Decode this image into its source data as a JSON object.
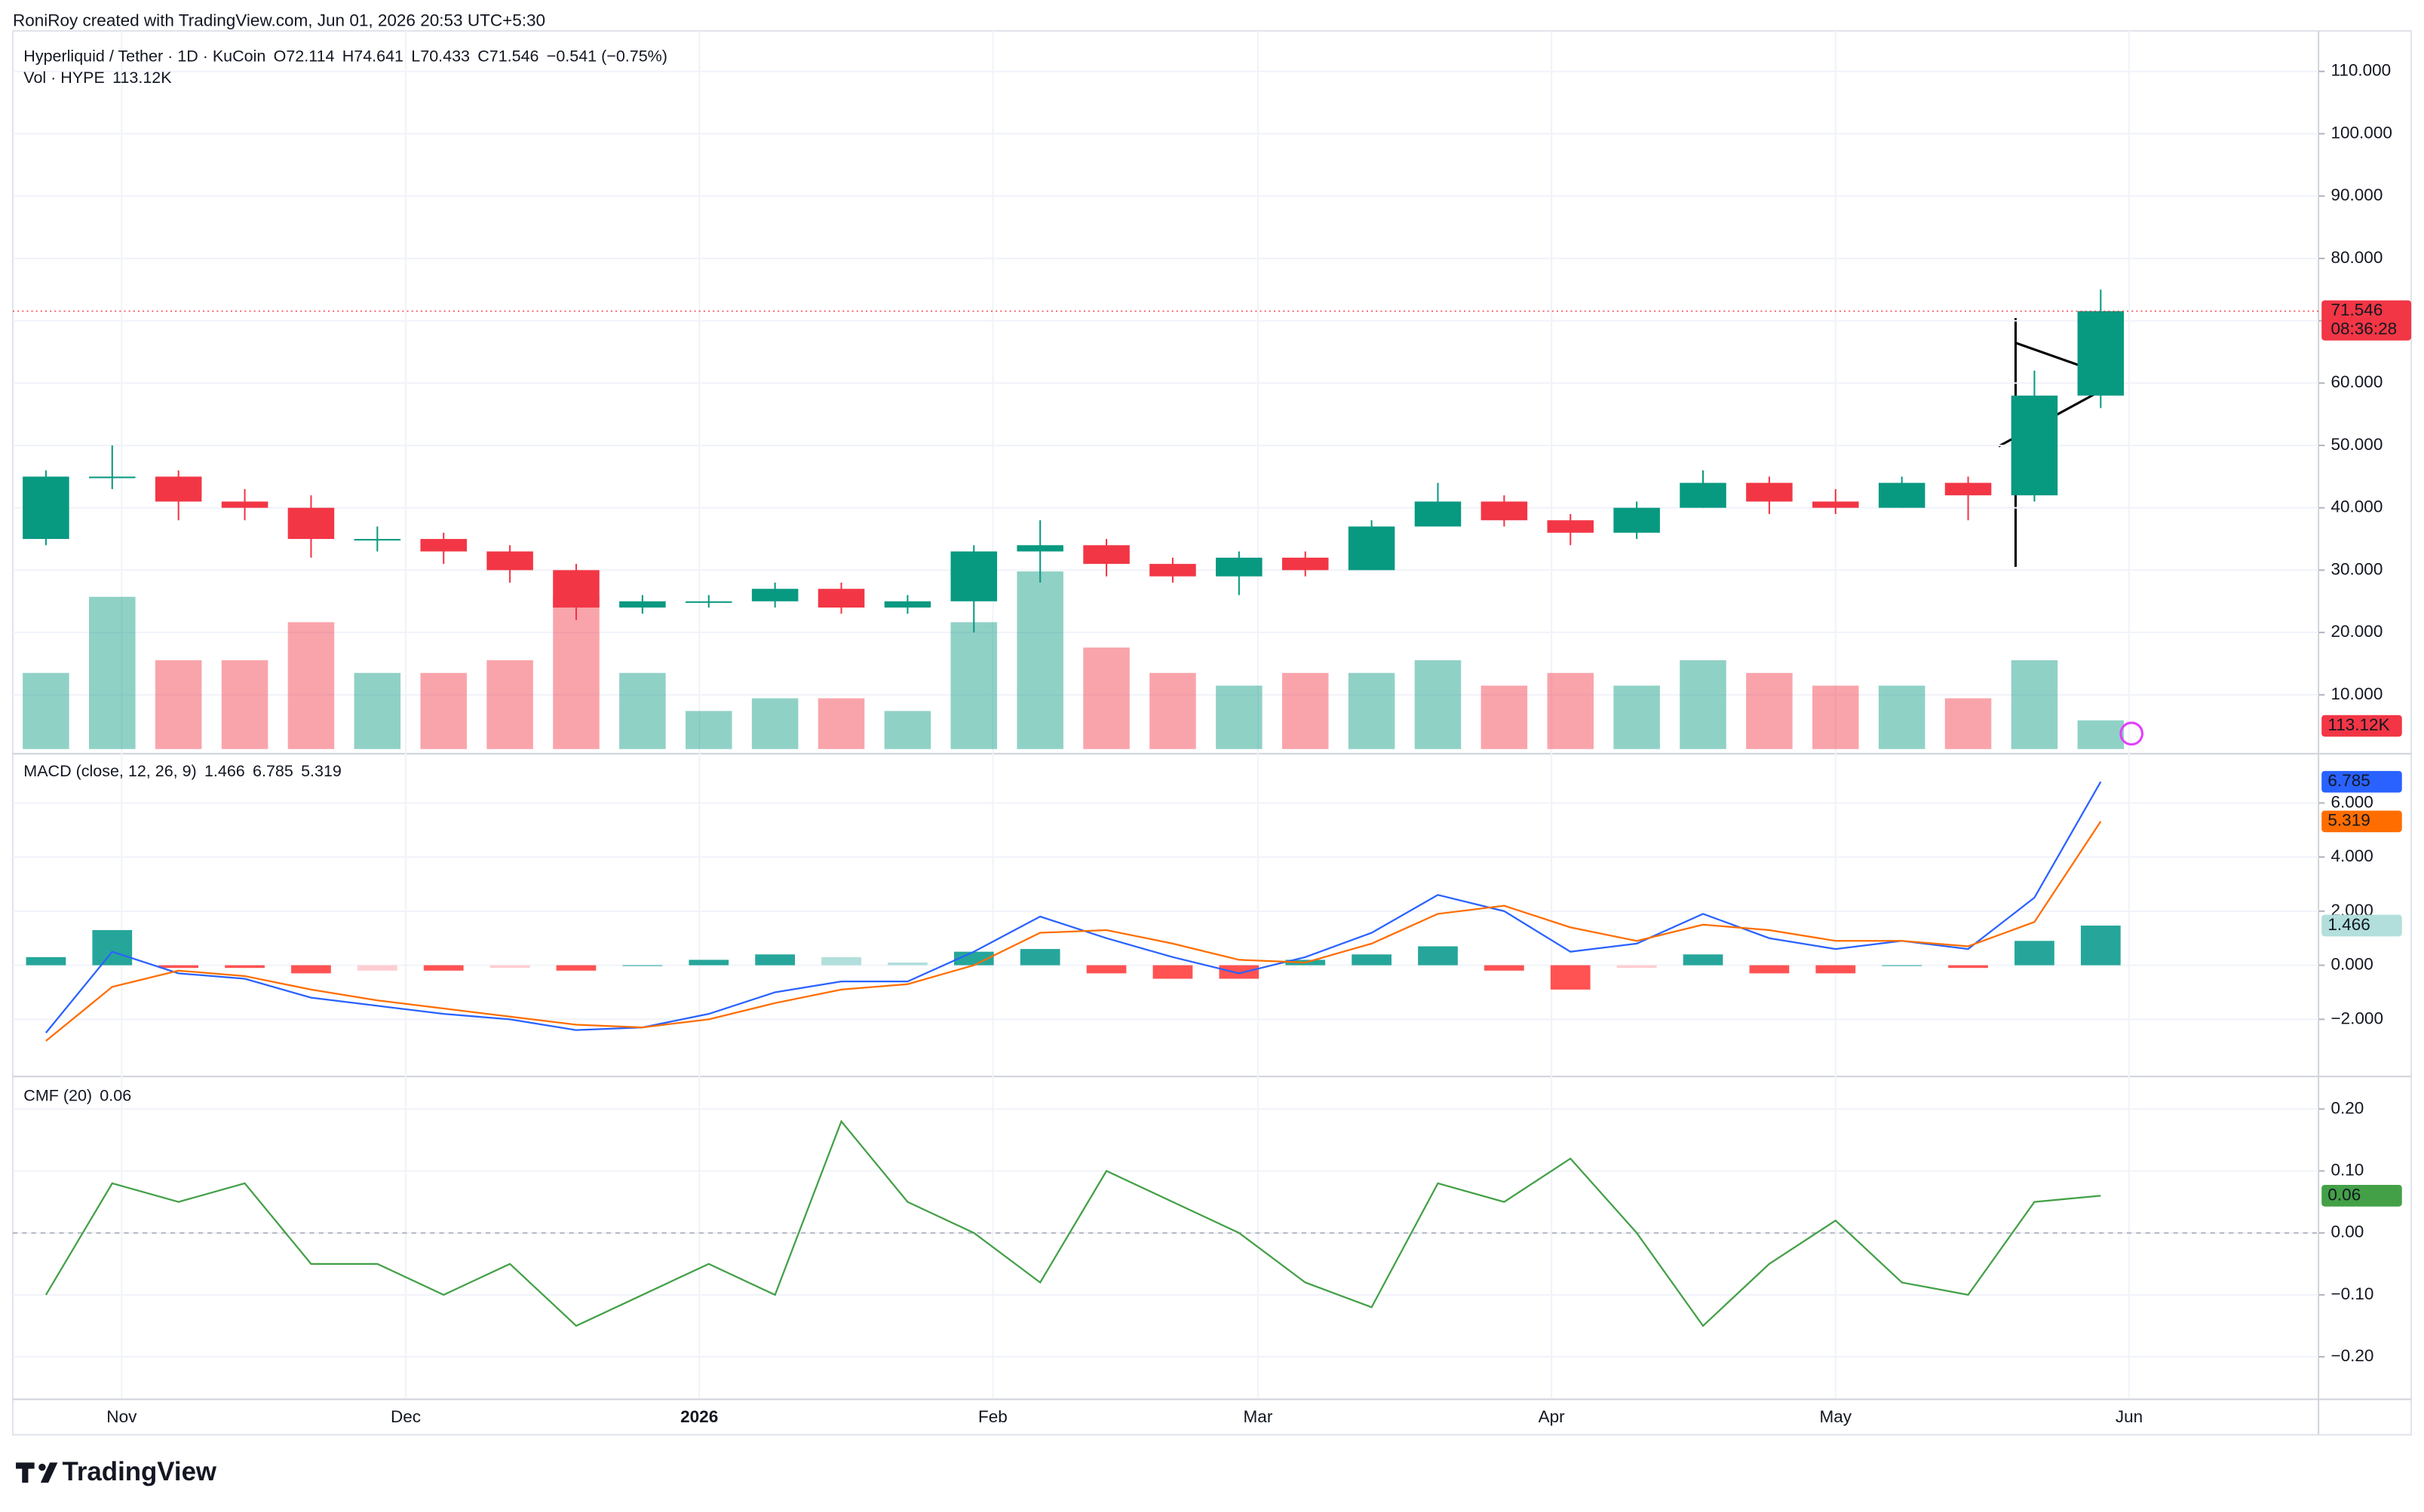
{
  "header": {
    "credit": "RoniRoy created with TradingView.com, Jun 01, 2026 20:53 UTC+5:30"
  },
  "footer": {
    "brand": "TradingView"
  },
  "chart_data": [
    {
      "type": "candlestick",
      "title": "Hyperliquid / Tether · 1D · KuCoin",
      "ohlc_legend": {
        "open": "O72.114",
        "high": "H74.641",
        "low": "L70.433",
        "close": "C71.546",
        "change": "−0.541 (−0.75%)"
      },
      "countdown": "08:36:28",
      "x": [
        3,
        10,
        17,
        24,
        31,
        38,
        45,
        52,
        59,
        66,
        73,
        80,
        87,
        94,
        101,
        108,
        115,
        122,
        129,
        136,
        143,
        150,
        157,
        164,
        171,
        178,
        185,
        192,
        199,
        206,
        213,
        220
      ],
      "open": [
        35,
        45,
        45,
        41,
        40,
        35,
        35,
        33,
        30,
        24,
        25,
        25,
        27,
        24,
        25,
        33,
        34,
        31,
        29,
        32,
        30,
        37,
        41,
        38,
        36,
        40,
        44,
        41,
        40,
        44,
        42,
        58
      ],
      "high": [
        46,
        50,
        46,
        43,
        42,
        37,
        36,
        34,
        31,
        26,
        26,
        28,
        28,
        26,
        34,
        38,
        35,
        32,
        33,
        33,
        38,
        44,
        42,
        39,
        41,
        46,
        45,
        43,
        45,
        45,
        62,
        75
      ],
      "low": [
        34,
        43,
        38,
        38,
        32,
        33,
        31,
        28,
        22,
        23,
        24,
        24,
        23,
        23,
        20,
        28,
        29,
        28,
        26,
        29,
        30,
        37,
        37,
        34,
        35,
        40,
        39,
        39,
        40,
        38,
        41,
        56
      ],
      "close": [
        45,
        45,
        41,
        40,
        35,
        35,
        33,
        30,
        24,
        25,
        25,
        27,
        24,
        25,
        33,
        34,
        31,
        29,
        32,
        30,
        37,
        41,
        38,
        36,
        40,
        44,
        41,
        40,
        44,
        42,
        58,
        71.546
      ],
      "up_color": "#089981",
      "down_color": "#f23645",
      "volume": {
        "name": "Vol · HYPE",
        "values": [
          300000,
          600000,
          350000,
          350000,
          500000,
          300000,
          300000,
          350000,
          600000,
          300000,
          150000,
          200000,
          200000,
          150000,
          500000,
          700000,
          400000,
          300000,
          250000,
          300000,
          300000,
          350000,
          250000,
          300000,
          250000,
          350000,
          300000,
          250000,
          250000,
          200000,
          350000,
          113120
        ],
        "value_labels": [
          null,
          null,
          null,
          null,
          null,
          null,
          null,
          null,
          null,
          null,
          null,
          null,
          null,
          null,
          null,
          null,
          null,
          null,
          null,
          null,
          null,
          null,
          null,
          null,
          null,
          null,
          null,
          null,
          null,
          null,
          null,
          "113.12K"
        ]
      },
      "xlim": [
        -0.5,
        243
      ],
      "xticks": [
        {
          "value": 11,
          "label": "Nov"
        },
        {
          "value": 41,
          "label": "Dec"
        },
        {
          "value": 72,
          "label": "2026"
        },
        {
          "value": 103,
          "label": "Feb"
        },
        {
          "value": 131,
          "label": "Mar"
        },
        {
          "value": 162,
          "label": "Apr"
        },
        {
          "value": 192,
          "label": "May"
        },
        {
          "value": 223,
          "label": "Jun"
        }
      ],
      "ylim": [
        1.3,
        116.5
      ],
      "yticks": [
        {
          "value": 10,
          "label": "10.000"
        },
        {
          "value": 20,
          "label": "20.000"
        },
        {
          "value": 30,
          "label": "30.000"
        },
        {
          "value": 40,
          "label": "40.000"
        },
        {
          "value": 50,
          "label": "50.000"
        },
        {
          "value": 60,
          "label": "60.000"
        },
        {
          "value": 70,
          "label": "70.000"
        },
        {
          "value": 80,
          "label": "80.000"
        },
        {
          "value": 90,
          "label": "90.000"
        },
        {
          "value": 100,
          "label": "100.000"
        },
        {
          "value": 110,
          "label": "110.000"
        }
      ],
      "grid": true
    },
    {
      "type": "macd",
      "title": "MACD (close, 12, 26, 9)",
      "series": [
        {
          "color": "#2962ff",
          "values": [
            -2.5,
            0.5,
            -0.3,
            -0.5,
            -1.2,
            -1.5,
            -1.8,
            -2.0,
            -2.4,
            -2.3,
            -1.8,
            -1.0,
            -0.6,
            -0.6,
            0.5,
            1.8,
            1.0,
            0.3,
            -0.3,
            0.3,
            1.2,
            2.6,
            2.0,
            0.5,
            0.8,
            1.9,
            1.0,
            0.6,
            0.9,
            0.6,
            2.5,
            6.785
          ]
        },
        {
          "color": "#ff6d00",
          "values": [
            -2.8,
            -0.8,
            -0.2,
            -0.4,
            -0.9,
            -1.3,
            -1.6,
            -1.9,
            -2.2,
            -2.3,
            -2.0,
            -1.4,
            -0.9,
            -0.7,
            0,
            1.2,
            1.3,
            0.8,
            0.2,
            0.1,
            0.8,
            1.9,
            2.2,
            1.4,
            0.9,
            1.5,
            1.3,
            0.9,
            0.9,
            0.7,
            1.6,
            5.319
          ]
        }
      ],
      "histogram": {
        "values": [
          0.3,
          1.3,
          -0.1,
          -0.1,
          -0.3,
          -0.2,
          -0.2,
          -0.1,
          -0.2,
          0,
          0.2,
          0.4,
          0.3,
          0.1,
          0.5,
          0.6,
          -0.3,
          -0.5,
          -0.5,
          0.2,
          0.4,
          0.7,
          -0.2,
          -0.9,
          -0.1,
          0.4,
          -0.3,
          -0.3,
          0,
          -0.1,
          0.9,
          1.466
        ],
        "colors": [
          "#26a69a",
          "#b2dfdb",
          "#ff5252",
          "#ffcdd2"
        ]
      },
      "ylim": [
        -4,
        7.71
      ],
      "yticks": [
        {
          "value": -2,
          "label": "−2.000"
        },
        {
          "value": 0,
          "label": "0.000"
        },
        {
          "value": 2,
          "label": "2.000"
        },
        {
          "value": 4,
          "label": "4.000"
        },
        {
          "value": 6,
          "label": "6.000"
        }
      ]
    },
    {
      "type": "line",
      "title": "CMF (20)",
      "series": [
        {
          "color": "#43a047",
          "values": [
            -0.1,
            0.08,
            0.05,
            0.08,
            -0.05,
            -0.05,
            -0.1,
            -0.05,
            -0.15,
            -0.1,
            -0.05,
            -0.1,
            0.18,
            0.05,
            0.0,
            -0.08,
            0.1,
            0.05,
            0.0,
            -0.08,
            -0.12,
            0.08,
            0.05,
            0.12,
            0.0,
            -0.15,
            -0.05,
            0.02,
            -0.08,
            -0.1,
            0.05,
            0.06
          ]
        }
      ],
      "ylim": [
        -0.266,
        0.245
      ],
      "yticks": [
        {
          "value": -0.2,
          "label": "−0.20"
        },
        {
          "value": -0.1,
          "label": "−0.10"
        },
        {
          "value": 0,
          "label": "0.00"
        },
        {
          "value": 0.1,
          "label": "0.10"
        },
        {
          "value": 0.2,
          "label": "0.20"
        }
      ]
    }
  ]
}
